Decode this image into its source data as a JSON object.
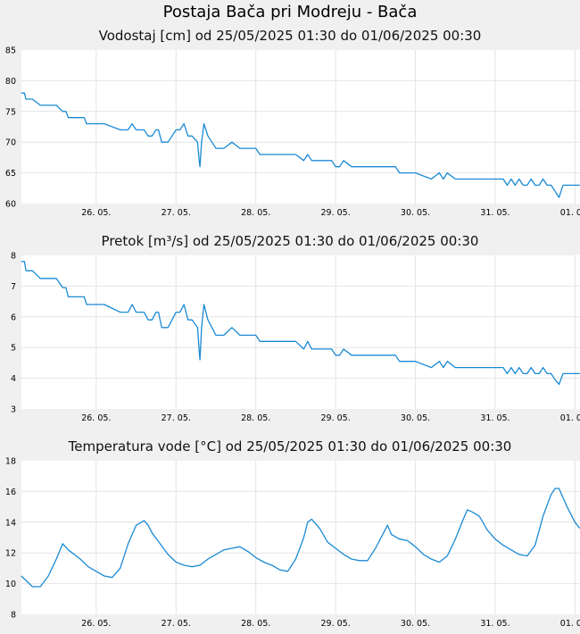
{
  "page": {
    "title": "Postaja Bača pri Modreju - Bača"
  },
  "colors": {
    "background": "#f0f0f0",
    "plot": "#ffffff",
    "line": "#1a8ad4",
    "grid": "#e4e4e4"
  },
  "chart_data": [
    {
      "type": "line",
      "title": "Vodostaj [cm] od 25/05/2025 01:30 do 01/06/2025 00:30",
      "x_ticks": [
        "26. 05.",
        "27. 05.",
        "28. 05.",
        "29. 05.",
        "30. 05.",
        "31. 05.",
        "01. 06."
      ],
      "y_ticks": [
        "60",
        "65",
        "70",
        "75",
        "80",
        "85"
      ],
      "ylim": [
        60,
        85
      ],
      "xlim_days": [
        25.0625,
        32.0625
      ],
      "grid": true,
      "series": [
        {
          "x": [
            25.06,
            25.1,
            25.12,
            25.14,
            25.2,
            25.3,
            25.34,
            25.5,
            25.58,
            25.62,
            25.65,
            25.7,
            25.85,
            25.88,
            25.95,
            26.1,
            26.3,
            26.35,
            26.4,
            26.45,
            26.5,
            26.55,
            26.6,
            26.65,
            26.7,
            26.75,
            26.78,
            26.82,
            26.9,
            26.95,
            27.0,
            27.05,
            27.1,
            27.15,
            27.2,
            27.27,
            27.29,
            27.3,
            27.32,
            27.35,
            27.4,
            27.45,
            27.5,
            27.55,
            27.6,
            27.7,
            27.8,
            27.9,
            28.0,
            28.05,
            28.1,
            28.15,
            28.2,
            28.5,
            28.6,
            28.65,
            28.7,
            28.8,
            28.95,
            29.0,
            29.05,
            29.1,
            29.2,
            29.3,
            29.4,
            29.6,
            29.75,
            29.8,
            29.9,
            30.0,
            30.2,
            30.3,
            30.35,
            30.4,
            30.5,
            30.6,
            30.7,
            31.0,
            31.1,
            31.15,
            31.2,
            31.25,
            31.3,
            31.35,
            31.4,
            31.45,
            31.5,
            31.55,
            31.6,
            31.65,
            31.7,
            31.75,
            31.8,
            31.85,
            31.9,
            32.0,
            32.06
          ],
          "y": [
            78,
            78,
            77,
            77,
            77,
            76,
            76,
            76,
            75,
            75,
            74,
            74,
            74,
            73,
            73,
            73,
            72,
            72,
            72,
            73,
            72,
            72,
            72,
            71,
            71,
            72,
            72,
            70,
            70,
            71,
            72,
            72,
            73,
            71,
            71,
            70,
            67,
            66,
            70,
            73,
            71,
            70,
            69,
            69,
            69,
            70,
            69,
            69,
            69,
            68,
            68,
            68,
            68,
            68,
            67,
            68,
            67,
            67,
            67,
            66,
            66,
            67,
            66,
            66,
            66,
            66,
            66,
            65,
            65,
            65,
            64,
            65,
            64,
            65,
            64,
            64,
            64,
            64,
            64,
            63,
            64,
            63,
            64,
            63,
            63,
            64,
            63,
            63,
            64,
            63,
            63,
            62,
            61,
            63,
            63,
            63,
            63
          ]
        }
      ]
    },
    {
      "type": "line",
      "title": "Pretok [m³/s] od 25/05/2025 01:30 do 01/06/2025 00:30",
      "x_ticks": [
        "26. 05.",
        "27. 05.",
        "28. 05.",
        "29. 05.",
        "30. 05.",
        "31. 05.",
        "01. 06."
      ],
      "y_ticks": [
        "3",
        "4",
        "5",
        "6",
        "7",
        "8"
      ],
      "ylim": [
        3,
        8
      ],
      "xlim_days": [
        25.0625,
        32.0625
      ],
      "grid": true,
      "series": [
        {
          "x": [
            25.06,
            25.1,
            25.12,
            25.14,
            25.2,
            25.3,
            25.34,
            25.5,
            25.58,
            25.62,
            25.65,
            25.7,
            25.85,
            25.88,
            25.95,
            26.1,
            26.3,
            26.35,
            26.4,
            26.45,
            26.5,
            26.55,
            26.6,
            26.65,
            26.7,
            26.75,
            26.78,
            26.82,
            26.9,
            26.95,
            27.0,
            27.05,
            27.1,
            27.15,
            27.2,
            27.27,
            27.29,
            27.3,
            27.32,
            27.35,
            27.4,
            27.45,
            27.5,
            27.55,
            27.6,
            27.7,
            27.8,
            27.9,
            28.0,
            28.05,
            28.1,
            28.15,
            28.2,
            28.5,
            28.6,
            28.65,
            28.7,
            28.8,
            28.95,
            29.0,
            29.05,
            29.1,
            29.2,
            29.3,
            29.4,
            29.6,
            29.75,
            29.8,
            29.9,
            30.0,
            30.2,
            30.3,
            30.35,
            30.4,
            30.5,
            30.6,
            30.7,
            31.0,
            31.1,
            31.15,
            31.2,
            31.25,
            31.3,
            31.35,
            31.4,
            31.45,
            31.5,
            31.55,
            31.6,
            31.65,
            31.7,
            31.75,
            31.8,
            31.85,
            31.9,
            32.0,
            32.06
          ],
          "y": [
            7.8,
            7.8,
            7.5,
            7.5,
            7.5,
            7.25,
            7.25,
            7.25,
            6.95,
            6.95,
            6.65,
            6.65,
            6.65,
            6.4,
            6.4,
            6.4,
            6.15,
            6.15,
            6.15,
            6.4,
            6.15,
            6.15,
            6.15,
            5.9,
            5.9,
            6.15,
            6.15,
            5.65,
            5.65,
            5.9,
            6.15,
            6.15,
            6.4,
            5.9,
            5.9,
            5.65,
            4.9,
            4.6,
            5.65,
            6.4,
            5.9,
            5.65,
            5.4,
            5.4,
            5.4,
            5.65,
            5.4,
            5.4,
            5.4,
            5.2,
            5.2,
            5.2,
            5.2,
            5.2,
            4.95,
            5.2,
            4.95,
            4.95,
            4.95,
            4.75,
            4.75,
            4.95,
            4.75,
            4.75,
            4.75,
            4.75,
            4.75,
            4.55,
            4.55,
            4.55,
            4.35,
            4.55,
            4.35,
            4.55,
            4.35,
            4.35,
            4.35,
            4.35,
            4.35,
            4.15,
            4.35,
            4.15,
            4.35,
            4.15,
            4.15,
            4.35,
            4.15,
            4.15,
            4.35,
            4.15,
            4.15,
            3.95,
            3.8,
            4.15,
            4.15,
            4.15,
            4.15
          ]
        }
      ]
    },
    {
      "type": "line",
      "title": "Temperatura vode [°C] od 25/05/2025 01:30 do 01/06/2025 00:30",
      "x_ticks": [
        "26. 05.",
        "27. 05.",
        "28. 05.",
        "29. 05.",
        "30. 05.",
        "31. 05.",
        "01. 06."
      ],
      "y_ticks": [
        "8",
        "10",
        "12",
        "14",
        "16",
        "18"
      ],
      "ylim": [
        8,
        18
      ],
      "xlim_days": [
        25.0625,
        32.0625
      ],
      "grid": true,
      "series": [
        {
          "x": [
            25.06,
            25.1,
            25.2,
            25.3,
            25.4,
            25.5,
            25.58,
            25.65,
            25.7,
            25.8,
            25.9,
            26.0,
            26.1,
            26.2,
            26.3,
            26.4,
            26.5,
            26.6,
            26.65,
            26.7,
            26.8,
            26.9,
            27.0,
            27.1,
            27.2,
            27.3,
            27.4,
            27.5,
            27.6,
            27.7,
            27.8,
            27.9,
            28.0,
            28.1,
            28.2,
            28.3,
            28.4,
            28.5,
            28.6,
            28.65,
            28.7,
            28.8,
            28.9,
            29.0,
            29.1,
            29.2,
            29.3,
            29.4,
            29.5,
            29.6,
            29.65,
            29.7,
            29.8,
            29.9,
            30.0,
            30.1,
            30.2,
            30.3,
            30.4,
            30.5,
            30.6,
            30.65,
            30.7,
            30.8,
            30.9,
            31.0,
            31.1,
            31.2,
            31.3,
            31.4,
            31.5,
            31.6,
            31.7,
            31.75,
            31.8,
            31.9,
            32.0,
            32.06
          ],
          "y": [
            10.5,
            10.3,
            9.8,
            9.8,
            10.5,
            11.6,
            12.6,
            12.2,
            12.0,
            11.6,
            11.1,
            10.8,
            10.5,
            10.4,
            11.0,
            12.6,
            13.8,
            14.1,
            13.8,
            13.3,
            12.6,
            11.9,
            11.4,
            11.2,
            11.1,
            11.2,
            11.6,
            11.9,
            12.2,
            12.3,
            12.4,
            12.1,
            11.7,
            11.4,
            11.2,
            10.9,
            10.8,
            11.6,
            13.0,
            14.0,
            14.2,
            13.6,
            12.7,
            12.3,
            11.9,
            11.6,
            11.5,
            11.5,
            12.3,
            13.3,
            13.8,
            13.2,
            12.9,
            12.8,
            12.4,
            11.9,
            11.6,
            11.4,
            11.8,
            12.9,
            14.2,
            14.8,
            14.7,
            14.4,
            13.5,
            12.9,
            12.5,
            12.2,
            11.9,
            11.8,
            12.5,
            14.4,
            15.8,
            16.2,
            16.2,
            15.0,
            14.0,
            13.6
          ]
        }
      ]
    }
  ]
}
